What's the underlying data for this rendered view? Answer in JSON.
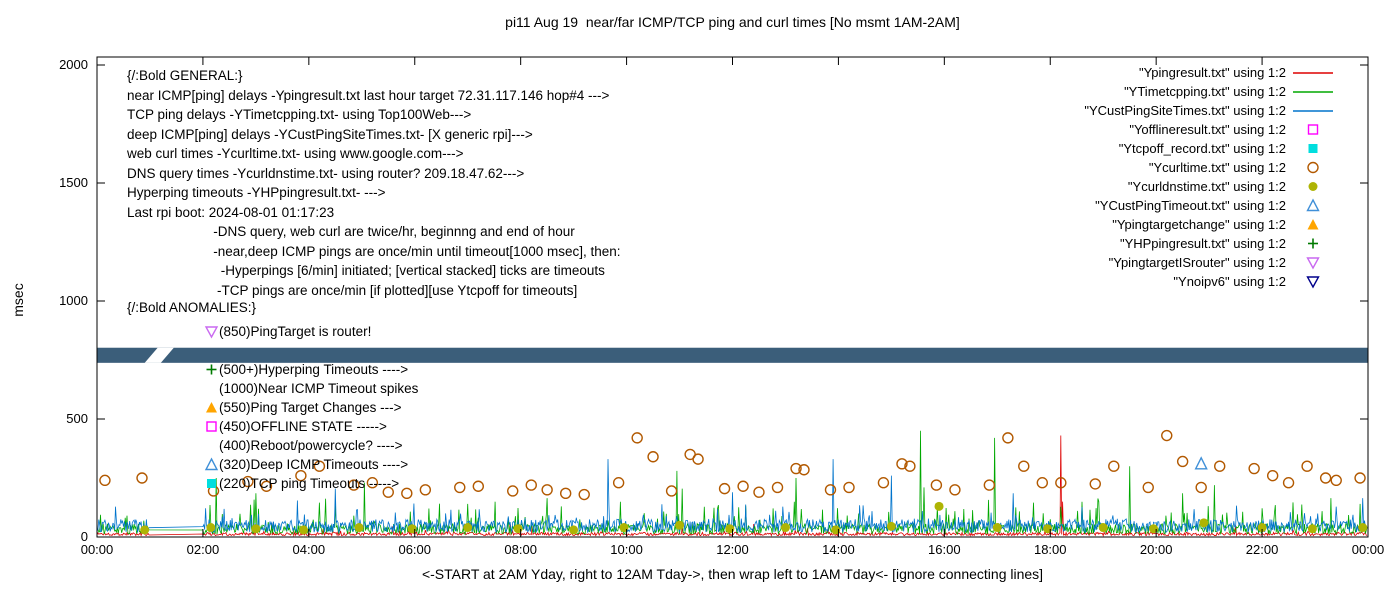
{
  "title": "pi11 Aug 19  near/far ICMP/TCP ping and curl times [No msmt 1AM-2AM]",
  "axes": {
    "y_label": "msec",
    "x_label": "<-START at 2AM Yday, right to 12AM Tday->, then wrap left to 1AM Tday<- [ignore connecting lines]",
    "y_ticks": [
      0,
      500,
      1000,
      1500,
      2000
    ],
    "y_max": 2000,
    "x_tick_labels": [
      "00:00",
      "02:00",
      "04:00",
      "06:00",
      "08:00",
      "10:00",
      "12:00",
      "14:00",
      "16:00",
      "18:00",
      "20:00",
      "22:00",
      "00:00"
    ],
    "x_max_hours": 24
  },
  "colors": {
    "red": "#dd0000",
    "green": "#00a800",
    "blue": "#0074cc",
    "magenta": "#ff00ff",
    "cyan": "#00dede",
    "orange_brown": "#b25900",
    "yellow_green": "#aeb404",
    "light_blue": "#4090d8",
    "orange": "#ffa500",
    "dark_green": "#007a00",
    "violet": "#c969f0",
    "navy": "#00008b",
    "band": "#3b5e7a"
  },
  "legend": [
    {
      "label": "\"Ypingresult.txt\" using 1:2",
      "marker": "line",
      "color_key": "red"
    },
    {
      "label": "\"YTimetcpping.txt\" using 1:2",
      "marker": "line",
      "color_key": "green"
    },
    {
      "label": "\"YCustPingSiteTimes.txt\" using 1:2",
      "marker": "line",
      "color_key": "blue"
    },
    {
      "label": "\"Yofflineresult.txt\" using 1:2",
      "marker": "square-open",
      "color_key": "magenta"
    },
    {
      "label": "\"Ytcpoff_record.txt\" using 1:2",
      "marker": "square-filled",
      "color_key": "cyan"
    },
    {
      "label": "\"Ycurltime.txt\" using 1:2",
      "marker": "circle-open",
      "color_key": "orange_brown"
    },
    {
      "label": "\"Ycurldnstime.txt\" using 1:2",
      "marker": "circle-filled",
      "color_key": "yellow_green"
    },
    {
      "label": "\"YCustPingTimeout.txt\" using 1:2",
      "marker": "triangle-up-open",
      "color_key": "light_blue"
    },
    {
      "label": "\"Ypingtargetchange\" using 1:2",
      "marker": "triangle-up-filled",
      "color_key": "orange"
    },
    {
      "label": "\"YHPpingresult.txt\" using 1:2",
      "marker": "plus",
      "color_key": "dark_green"
    },
    {
      "label": "\"YpingtargetISrouter\" using 1:2",
      "marker": "triangle-down-open",
      "color_key": "violet"
    },
    {
      "label": "\"Ynoipv6\" using 1:2",
      "marker": "triangle-down-open",
      "color_key": "navy"
    }
  ],
  "annotations": {
    "general_lines": [
      "{/:Bold GENERAL:}",
      "near ICMP[ping] delays -Ypingresult.txt last hour target 72.31.117.146 hop#4 --->",
      "TCP ping delays -YTimetcpping.txt- using Top100Web--->",
      "deep ICMP[ping] delays -YCustPingSiteTimes.txt- [X generic rpi]--->",
      "web curl times -Ycurltime.txt- using www.google.com--->",
      "DNS query times -Ycurldnstime.txt- using router? 209.18.47.62--->",
      "Hyperping timeouts -YHPpingresult.txt- --->",
      "Last rpi boot: 2024-08-01 01:17:23",
      "                       -DNS query, web curl are twice/hr, beginnng and end of hour",
      "                       -near,deep ICMP pings are once/min until timeout[1000 msec], then:",
      "                         -Hyperpings [6/min] initiated; [vertical stacked] ticks are timeouts",
      "                        -TCP pings are once/min [if plotted][use Ytcpoff for timeouts]"
    ],
    "anomalies_header": "{/:Bold ANOMALIES:}",
    "anomalies": [
      {
        "marker": "triangle-down-open",
        "color_key": "violet",
        "text": "(850)PingTarget is router!"
      },
      {
        "marker": null,
        "color_key": null,
        "text": ""
      },
      {
        "marker": "plus",
        "color_key": "dark_green",
        "text": "(500+)Hyperping Timeouts ---->"
      },
      {
        "marker": null,
        "color_key": null,
        "text": "(1000)Near ICMP Timeout spikes"
      },
      {
        "marker": "triangle-up-filled",
        "color_key": "orange",
        "text": "(550)Ping Target Changes --->"
      },
      {
        "marker": "square-open",
        "color_key": "magenta",
        "text": "(450)OFFLINE STATE ----->"
      },
      {
        "marker": null,
        "color_key": null,
        "text": "(400)Reboot/powercycle? ---->"
      },
      {
        "marker": "triangle-up-open",
        "color_key": "light_blue",
        "text": "(320)Deep ICMP Timeouts ---->"
      },
      {
        "marker": "square-filled",
        "color_key": "cyan",
        "text": "(220)TCP ping Timeouts ----->"
      }
    ]
  },
  "chart_data": {
    "type": "line",
    "x_unit": "hours",
    "y_unit": "msec",
    "ylim": [
      0,
      2000
    ],
    "xlim_hours": [
      0,
      24
    ],
    "no_measurement_gap_hours": [
      1,
      2
    ],
    "series": [
      {
        "name": "Ypingresult",
        "color_key": "red",
        "style": "line",
        "baseline": {
          "base": 6,
          "jitter": 14,
          "spike_prob": 0.03,
          "spike_extra": 30
        },
        "spikes": [
          [
            18.2,
            430
          ],
          [
            18.23,
            150
          ],
          [
            3.3,
            60
          ],
          [
            7.8,
            55
          ],
          [
            12.4,
            55
          ],
          [
            21.5,
            50
          ]
        ]
      },
      {
        "name": "YTimetcpping",
        "color_key": "green",
        "style": "line",
        "baseline": {
          "base": 12,
          "jitter": 45,
          "spike_prob": 0.1,
          "spike_extra": 110
        },
        "spikes": [
          [
            2.25,
            250
          ],
          [
            3.0,
            185
          ],
          [
            5.05,
            230
          ],
          [
            8.5,
            165
          ],
          [
            10.95,
            280
          ],
          [
            11.05,
            205
          ],
          [
            13.2,
            250
          ],
          [
            15.55,
            450
          ],
          [
            15.62,
            210
          ],
          [
            16.95,
            420
          ],
          [
            19.5,
            300
          ],
          [
            20.5,
            185
          ],
          [
            21.1,
            220
          ],
          [
            23.3,
            165
          ]
        ]
      },
      {
        "name": "YCustPingSiteTimes",
        "color_key": "blue",
        "style": "line",
        "baseline": {
          "base": 20,
          "jitter": 55,
          "spike_prob": 0.08,
          "spike_extra": 85
        },
        "spikes": [
          [
            4.5,
            205
          ],
          [
            9.65,
            330
          ],
          [
            12.0,
            190
          ],
          [
            13.9,
            330
          ],
          [
            15.0,
            260
          ],
          [
            17.3,
            185
          ],
          [
            23.9,
            165
          ]
        ]
      }
    ],
    "scatter": [
      {
        "name": "Ycurltime",
        "color_key": "orange_brown",
        "marker": "circle-open",
        "points": [
          [
            0.15,
            240
          ],
          [
            0.85,
            250
          ],
          [
            2.2,
            195
          ],
          [
            2.85,
            235
          ],
          [
            3.2,
            215
          ],
          [
            3.85,
            260
          ],
          [
            4.2,
            300
          ],
          [
            4.85,
            220
          ],
          [
            5.2,
            230
          ],
          [
            5.5,
            190
          ],
          [
            5.85,
            185
          ],
          [
            6.2,
            200
          ],
          [
            6.85,
            210
          ],
          [
            7.2,
            215
          ],
          [
            7.85,
            195
          ],
          [
            8.2,
            220
          ],
          [
            8.5,
            200
          ],
          [
            8.85,
            185
          ],
          [
            9.2,
            180
          ],
          [
            9.85,
            230
          ],
          [
            10.2,
            420
          ],
          [
            10.5,
            340
          ],
          [
            10.85,
            195
          ],
          [
            11.2,
            350
          ],
          [
            11.35,
            330
          ],
          [
            11.85,
            205
          ],
          [
            12.2,
            215
          ],
          [
            12.5,
            190
          ],
          [
            12.85,
            210
          ],
          [
            13.2,
            290
          ],
          [
            13.35,
            285
          ],
          [
            13.85,
            200
          ],
          [
            14.2,
            210
          ],
          [
            14.85,
            230
          ],
          [
            15.2,
            310
          ],
          [
            15.35,
            300
          ],
          [
            15.85,
            220
          ],
          [
            16.2,
            200
          ],
          [
            16.85,
            220
          ],
          [
            17.2,
            420
          ],
          [
            17.5,
            300
          ],
          [
            17.85,
            230
          ],
          [
            18.2,
            230
          ],
          [
            18.85,
            225
          ],
          [
            19.2,
            300
          ],
          [
            19.85,
            210
          ],
          [
            20.2,
            430
          ],
          [
            20.5,
            320
          ],
          [
            20.85,
            210
          ],
          [
            21.2,
            300
          ],
          [
            21.85,
            290
          ],
          [
            22.2,
            260
          ],
          [
            22.5,
            230
          ],
          [
            22.85,
            300
          ],
          [
            23.2,
            250
          ],
          [
            23.4,
            240
          ],
          [
            23.85,
            250
          ]
        ]
      },
      {
        "name": "Ycurldnstime",
        "color_key": "yellow_green",
        "marker": "circle-filled",
        "points": [
          [
            0.9,
            30
          ],
          [
            2.15,
            40
          ],
          [
            3.0,
            35
          ],
          [
            3.9,
            30
          ],
          [
            4.95,
            40
          ],
          [
            5.95,
            35
          ],
          [
            7.0,
            40
          ],
          [
            7.95,
            35
          ],
          [
            9.0,
            30
          ],
          [
            9.95,
            40
          ],
          [
            11.0,
            50
          ],
          [
            11.95,
            35
          ],
          [
            13.0,
            40
          ],
          [
            13.95,
            30
          ],
          [
            15.0,
            45
          ],
          [
            15.9,
            130
          ],
          [
            17.0,
            40
          ],
          [
            17.95,
            35
          ],
          [
            19.0,
            40
          ],
          [
            19.95,
            35
          ],
          [
            20.9,
            60
          ],
          [
            22.0,
            40
          ],
          [
            22.95,
            35
          ],
          [
            23.9,
            40
          ]
        ]
      },
      {
        "name": "YCustPingTimeout",
        "color_key": "light_blue",
        "marker": "triangle-up-open",
        "points": [
          [
            20.85,
            310
          ]
        ]
      }
    ],
    "noipv6_band": {
      "y_msec": 770,
      "half_height_msec": 32,
      "gap_hours": [
        0.9,
        1.45
      ],
      "color_key": "band"
    }
  }
}
